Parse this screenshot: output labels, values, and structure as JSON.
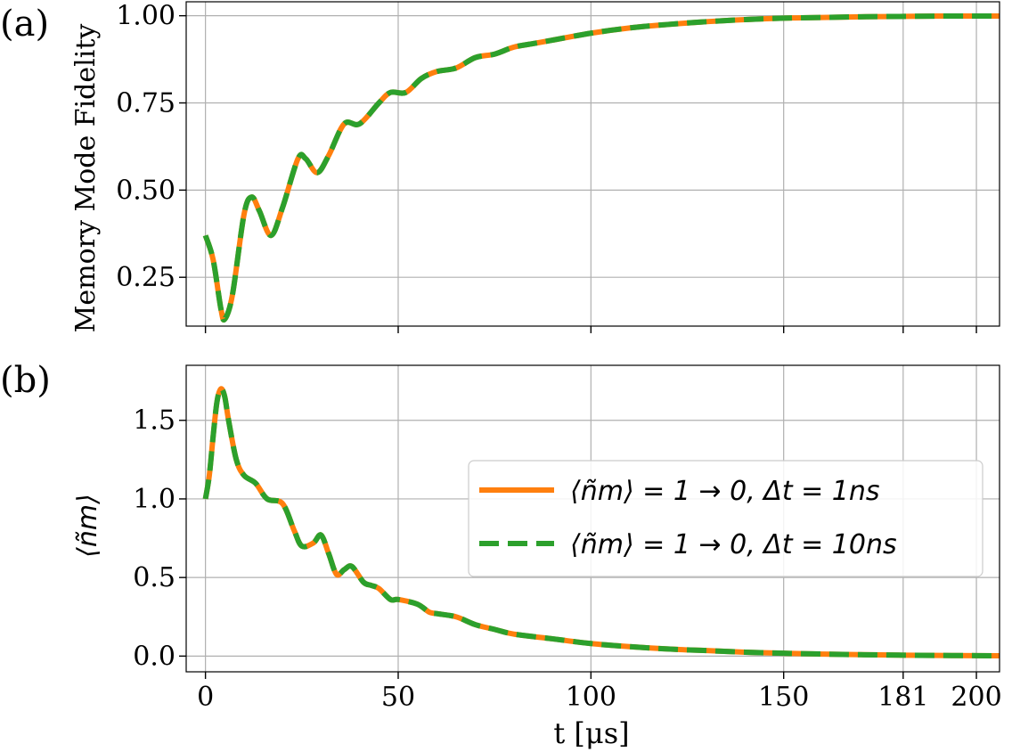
{
  "figure": {
    "xlabel": "t [μs]",
    "x_ticks": [
      0,
      50,
      100,
      150,
      181,
      200
    ],
    "x_tick_labels": [
      "0",
      "50",
      "100",
      "150",
      "181",
      "200"
    ],
    "xlim": [
      -5,
      206
    ],
    "grid": true
  },
  "colors": {
    "series_1ns": "#ff7f0e",
    "series_10ns": "#2ca02c",
    "grid": "#b0b0b0"
  },
  "chart_data": [
    {
      "type": "line",
      "panel_label": "(a)",
      "title": "",
      "xlabel": "",
      "ylabel": "Memory Mode Fidelity",
      "ylim": [
        0.11,
        1.04
      ],
      "y_ticks": [
        0.25,
        0.5,
        0.75,
        1.0
      ],
      "y_tick_labels": [
        "0.25",
        "0.50",
        "0.75",
        "1.00"
      ],
      "legend": null,
      "series": [
        {
          "name": "⟨ñm⟩ = 1 → 0, Δt = 1ns",
          "x": [
            0,
            2,
            4,
            5,
            7,
            10,
            12,
            14,
            17,
            20,
            24,
            26,
            29,
            32,
            36,
            40,
            45,
            48,
            52,
            56,
            60,
            65,
            70,
            75,
            80,
            85,
            90,
            100,
            110,
            120,
            130,
            140,
            150,
            160,
            170,
            180,
            190,
            200,
            206
          ],
          "y": [
            0.37,
            0.3,
            0.16,
            0.13,
            0.2,
            0.43,
            0.48,
            0.44,
            0.37,
            0.45,
            0.59,
            0.59,
            0.55,
            0.6,
            0.69,
            0.69,
            0.75,
            0.78,
            0.78,
            0.82,
            0.84,
            0.85,
            0.88,
            0.89,
            0.91,
            0.92,
            0.93,
            0.95,
            0.965,
            0.975,
            0.983,
            0.989,
            0.993,
            0.995,
            0.997,
            0.998,
            0.999,
            0.999,
            0.999
          ]
        },
        {
          "name": "⟨ñm⟩ = 1 → 0, Δt = 10ns",
          "x": [
            0,
            2,
            4,
            5,
            7,
            10,
            12,
            14,
            17,
            20,
            24,
            26,
            29,
            32,
            36,
            40,
            45,
            48,
            52,
            56,
            60,
            65,
            70,
            75,
            80,
            85,
            90,
            100,
            110,
            120,
            130,
            140,
            150,
            160,
            170,
            180,
            190,
            200,
            206
          ],
          "y": [
            0.37,
            0.3,
            0.16,
            0.13,
            0.2,
            0.43,
            0.48,
            0.44,
            0.37,
            0.45,
            0.59,
            0.59,
            0.55,
            0.6,
            0.69,
            0.69,
            0.75,
            0.78,
            0.78,
            0.82,
            0.84,
            0.85,
            0.88,
            0.89,
            0.91,
            0.92,
            0.93,
            0.95,
            0.965,
            0.975,
            0.983,
            0.989,
            0.993,
            0.995,
            0.997,
            0.998,
            0.999,
            0.999,
            0.999
          ]
        }
      ]
    },
    {
      "type": "line",
      "panel_label": "(b)",
      "title": "",
      "xlabel": "t [μs]",
      "ylabel": "⟨ñm⟩",
      "ylim": [
        -0.1,
        1.85
      ],
      "y_ticks": [
        0.0,
        0.5,
        1.0,
        1.5
      ],
      "y_tick_labels": [
        "0.0",
        "0.5",
        "1.0",
        "1.5"
      ],
      "legend": "center-right",
      "series": [
        {
          "name": "⟨ñm⟩ = 1 → 0, Δt = 1ns",
          "x": [
            0,
            1,
            2,
            3,
            4,
            5,
            6,
            8,
            10,
            13,
            16,
            20,
            23,
            25,
            28,
            30,
            32,
            34,
            36,
            38,
            41,
            43,
            45,
            48,
            50,
            55,
            58,
            60,
            65,
            70,
            75,
            80,
            90,
            100,
            110,
            120,
            130,
            140,
            150,
            160,
            170,
            180,
            190,
            200,
            206
          ],
          "y": [
            1.0,
            1.15,
            1.4,
            1.62,
            1.7,
            1.65,
            1.5,
            1.25,
            1.15,
            1.1,
            1.0,
            0.97,
            0.8,
            0.7,
            0.72,
            0.77,
            0.65,
            0.52,
            0.55,
            0.57,
            0.47,
            0.45,
            0.43,
            0.36,
            0.36,
            0.33,
            0.28,
            0.27,
            0.25,
            0.2,
            0.17,
            0.14,
            0.11,
            0.08,
            0.06,
            0.045,
            0.035,
            0.025,
            0.018,
            0.013,
            0.009,
            0.006,
            0.004,
            0.003,
            0.002
          ]
        },
        {
          "name": "⟨ñm⟩ = 1 → 0, Δt = 10ns",
          "x": [
            0,
            1,
            2,
            3,
            4,
            5,
            6,
            8,
            10,
            13,
            16,
            20,
            23,
            25,
            28,
            30,
            32,
            34,
            36,
            38,
            41,
            43,
            45,
            48,
            50,
            55,
            58,
            60,
            65,
            70,
            75,
            80,
            90,
            100,
            110,
            120,
            130,
            140,
            150,
            160,
            170,
            180,
            190,
            200,
            206
          ],
          "y": [
            1.0,
            1.15,
            1.4,
            1.62,
            1.7,
            1.65,
            1.5,
            1.25,
            1.15,
            1.1,
            1.0,
            0.97,
            0.8,
            0.7,
            0.72,
            0.77,
            0.65,
            0.52,
            0.55,
            0.57,
            0.47,
            0.45,
            0.43,
            0.36,
            0.36,
            0.33,
            0.28,
            0.27,
            0.25,
            0.2,
            0.17,
            0.14,
            0.11,
            0.08,
            0.06,
            0.045,
            0.035,
            0.025,
            0.018,
            0.013,
            0.009,
            0.006,
            0.004,
            0.003,
            0.002
          ]
        }
      ]
    }
  ]
}
